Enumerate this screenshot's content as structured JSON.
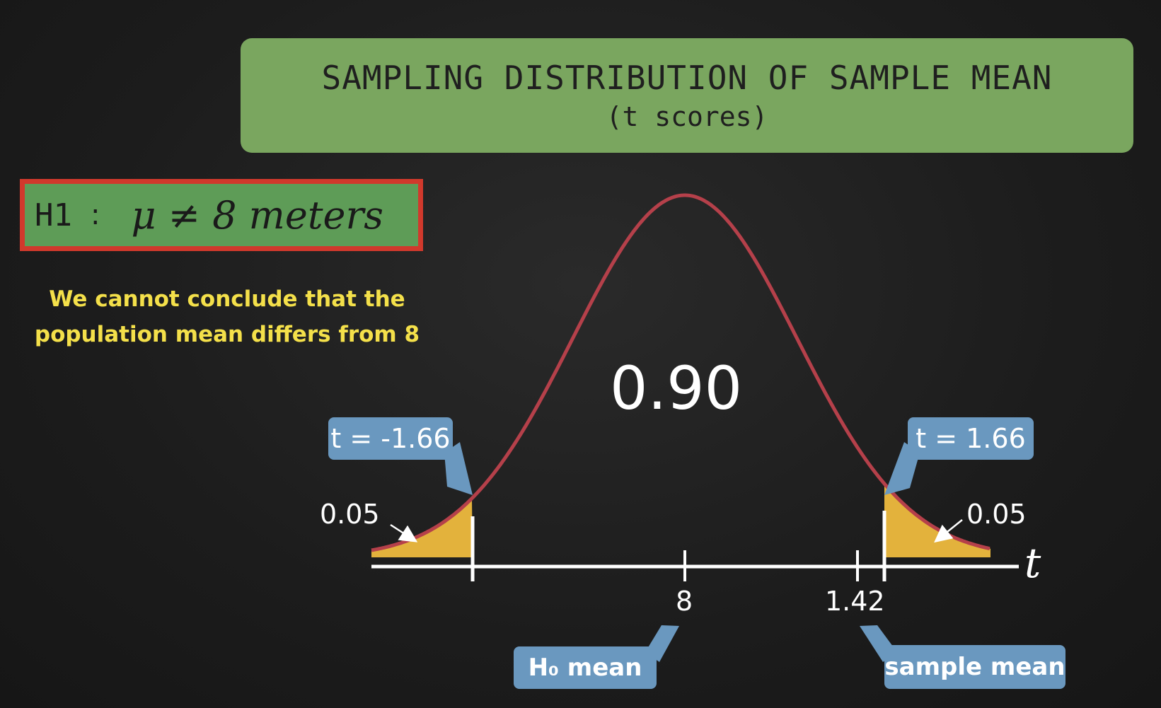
{
  "title": {
    "main": "SAMPLING DISTRIBUTION OF SAMPLE MEAN",
    "sub": "(t scores)"
  },
  "hypothesis": {
    "label": "H1",
    "colon": ":",
    "statement": "μ ≠ 8 meters"
  },
  "conclusion": [
    "We cannot conclude that the",
    "population mean differs from 8"
  ],
  "diagram": {
    "center_area": "0.90",
    "left_tail_area": "0.05",
    "right_tail_area": "0.05",
    "left_critical": "t = -1.66",
    "right_critical": "t = 1.66",
    "axis_var": "t",
    "tick_mean": "8",
    "tick_sample": "1.42",
    "h0_callout": "H₀ mean",
    "sample_callout": "sample mean"
  },
  "colors": {
    "title_bg": "#7aa65f",
    "hyp_bg": "#5e9c57",
    "hyp_border": "#d1392c",
    "curve": "#b5404a",
    "tail_fill": "#e3b23c",
    "callout": "#6a98bf",
    "conclusion_text": "#f4e04a"
  }
}
